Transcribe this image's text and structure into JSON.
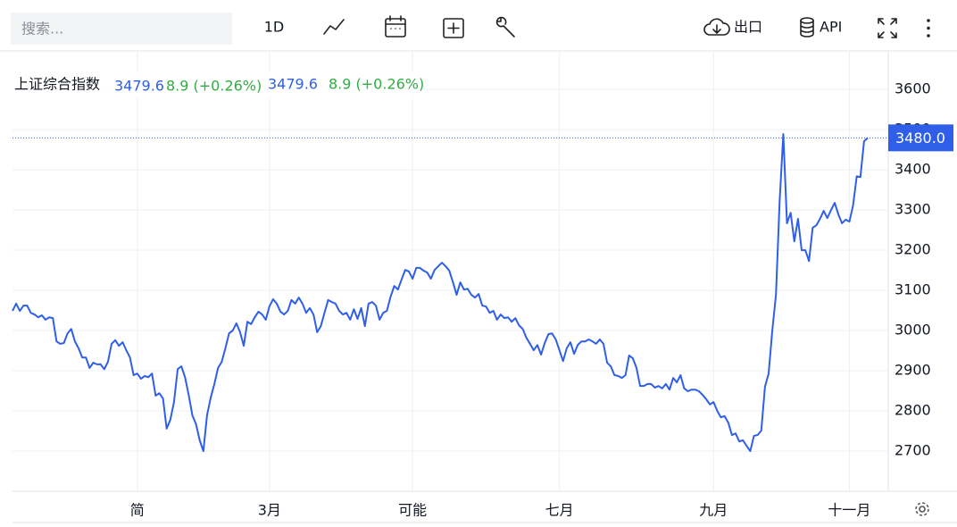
{
  "toolbar": {
    "search_placeholder": "搜索...",
    "interval": "1D",
    "export": "出口",
    "api": "API"
  },
  "chart_data": {
    "type": "line",
    "legend_values": [
      {
        "value": "3479.6",
        "change": "8.9 (+0.26%)"
      },
      {
        "value": "3479.6",
        "change": "8.9 (+0.26%)"
      }
    ],
    "price_label": "3480.0",
    "categories": [
      null,
      null,
      null,
      null,
      null,
      null,
      null,
      null,
      null,
      null,
      null,
      null,
      null,
      null,
      null,
      null,
      null,
      null,
      null,
      null,
      null,
      null,
      null,
      null,
      null,
      null,
      null,
      null,
      null,
      null,
      null,
      null,
      null,
      null,
      "简",
      null,
      null,
      null,
      null,
      null,
      null,
      null,
      null,
      null,
      null,
      null,
      null,
      null,
      null,
      null,
      null,
      null,
      null,
      null,
      null,
      null,
      null,
      null,
      null,
      null,
      null,
      null,
      null,
      null,
      null,
      null,
      null,
      null,
      null,
      null,
      "3月",
      null,
      null,
      null,
      null,
      null,
      null,
      null,
      null,
      null,
      null,
      null,
      null,
      null,
      null,
      null,
      null,
      null,
      null,
      null,
      null,
      null,
      null,
      null,
      null,
      null,
      null,
      null,
      null,
      null,
      null,
      null,
      null,
      null,
      null,
      null,
      null,
      null,
      null,
      "可能",
      null,
      null,
      null,
      null,
      null,
      null,
      null,
      null,
      null,
      null,
      null,
      null,
      null,
      null,
      null,
      null,
      null,
      null,
      null,
      null,
      null,
      null,
      null,
      null,
      null,
      null,
      null,
      null,
      null,
      null,
      null,
      null,
      null,
      null,
      null,
      null,
      null,
      null,
      null,
      "七月",
      null,
      null,
      null,
      null,
      null,
      null,
      null,
      null,
      null,
      null,
      null,
      null,
      null,
      null,
      null,
      null,
      null,
      null,
      null,
      null,
      null,
      null,
      null,
      null,
      null,
      null,
      null,
      null,
      null,
      null,
      null,
      null,
      null,
      null,
      null,
      null,
      null,
      null,
      null,
      null,
      null,
      "九月",
      null,
      null,
      null,
      null,
      null,
      null,
      null,
      null,
      null,
      null,
      null,
      null,
      null,
      null,
      null,
      null,
      null,
      null,
      null,
      null,
      null,
      null,
      null,
      null,
      null,
      null,
      null,
      null,
      null,
      null,
      null,
      null,
      null,
      null,
      null,
      null,
      "十一月",
      null,
      null,
      null,
      null,
      null
    ],
    "series": [
      {
        "name": "上证综合指数",
        "color": "#2f5fe8",
        "values": [
          3049,
          3067,
          3049,
          3062,
          3062,
          3044,
          3040,
          3033,
          3038,
          3027,
          3033,
          3031,
          2973,
          2967,
          2969,
          2993,
          3004,
          2973,
          2956,
          2933,
          2933,
          2907,
          2920,
          2916,
          2916,
          2904,
          2922,
          2967,
          2976,
          2962,
          2971,
          2951,
          2933,
          2889,
          2893,
          2880,
          2887,
          2884,
          2893,
          2838,
          2844,
          2831,
          2756,
          2778,
          2822,
          2904,
          2911,
          2884,
          2840,
          2789,
          2767,
          2727,
          2700,
          2789,
          2833,
          2867,
          2907,
          2922,
          2956,
          2993,
          3000,
          3018,
          2996,
          2962,
          3022,
          3016,
          3033,
          3047,
          3040,
          3027,
          3060,
          3078,
          3067,
          3047,
          3040,
          3049,
          3076,
          3067,
          3082,
          3067,
          3044,
          3056,
          3040,
          2996,
          3011,
          3044,
          3076,
          3071,
          3067,
          3049,
          3040,
          3044,
          3027,
          3053,
          3029,
          3056,
          3011,
          3067,
          3071,
          3062,
          3027,
          3044,
          3049,
          3084,
          3111,
          3102,
          3127,
          3151,
          3147,
          3129,
          3156,
          3156,
          3149,
          3144,
          3129,
          3151,
          3160,
          3169,
          3160,
          3149,
          3120,
          3089,
          3120,
          3102,
          3104,
          3089,
          3082,
          3091,
          3062,
          3060,
          3044,
          3049,
          3027,
          3040,
          3031,
          3033,
          3022,
          3031,
          3013,
          3004,
          2982,
          2967,
          2951,
          2964,
          2940,
          2969,
          2991,
          2993,
          2978,
          2951,
          2924,
          2956,
          2971,
          2942,
          2964,
          2973,
          2973,
          2978,
          2973,
          2967,
          2978,
          2967,
          2920,
          2911,
          2889,
          2887,
          2882,
          2889,
          2938,
          2931,
          2907,
          2862,
          2862,
          2867,
          2867,
          2858,
          2862,
          2856,
          2867,
          2853,
          2882,
          2871,
          2889,
          2856,
          2849,
          2853,
          2853,
          2849,
          2840,
          2829,
          2816,
          2822,
          2800,
          2784,
          2787,
          2771,
          2740,
          2744,
          2724,
          2727,
          2713,
          2700,
          2738,
          2740,
          2751,
          2860,
          2893,
          3000,
          3089,
          3322,
          3489,
          3267,
          3293,
          3222,
          3278,
          3200,
          3200,
          3173,
          3256,
          3262,
          3278,
          3298,
          3280,
          3300,
          3318,
          3289,
          3267,
          3276,
          3271,
          3311,
          3384,
          3382,
          3471,
          3479.6
        ]
      }
    ],
    "ylim": [
      2600,
      3696
    ],
    "yticks": [
      2700,
      2800,
      2900,
      3000,
      3100,
      3200,
      3300,
      3400,
      3500,
      3600
    ],
    "grid": true
  }
}
